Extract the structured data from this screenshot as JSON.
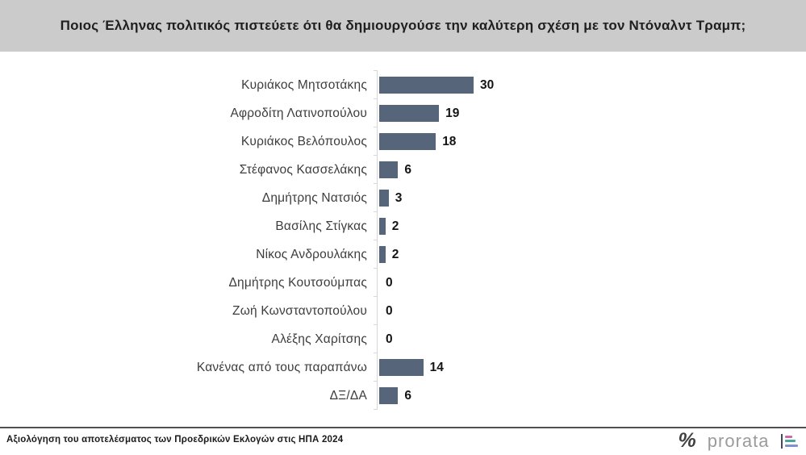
{
  "title": "Ποιος Έλληνας πολιτικός πιστεύετε ότι θα δημιουργούσε την καλύτερη σχέση με τον Ντόναλντ Τραμπ;",
  "chart_data": {
    "type": "bar",
    "orientation": "horizontal",
    "title": "Ποιος Έλληνας πολιτικός πιστεύετε ότι θα δημιουργούσε την καλύτερη σχέση με τον Ντόναλντ Τραμπ;",
    "categories": [
      "Κυριάκος Μητσοτάκης",
      "Αφροδίτη Λατινοπούλου",
      "Κυριάκος Βελόπουλος",
      "Στέφανος Κασσελάκης",
      "Δημήτρης Νατσιός",
      "Βασίλης Στίγκας",
      "Νίκος Ανδρουλάκης",
      "Δημήτρης Κουτσούμπας",
      "Ζωή Κωνσταντοπούλου",
      "Αλέξης Χαρίτσης",
      "Κανένας από τους παραπάνω",
      "ΔΞ/ΔΑ"
    ],
    "values": [
      30,
      19,
      18,
      6,
      3,
      2,
      2,
      0,
      0,
      0,
      14,
      6
    ],
    "xlim": [
      0,
      32
    ],
    "grid": false,
    "legend": false,
    "bar_color": "#56657a"
  },
  "footer": {
    "caption": "Αξιολόγηση του αποτελέσματος των Προεδρικών Εκλογών στις ΗΠΑ 2024",
    "percent_glyph": "%",
    "brand": "prorata"
  },
  "colors": {
    "header_bg": "#cbcbcb",
    "bar": "#56657a",
    "axis": "#d6d6d6",
    "footer_rule": "#4f4f4f",
    "logo_pink": "#cf6aa8",
    "logo_teal": "#46a89b",
    "logo_blue": "#8091d2"
  }
}
